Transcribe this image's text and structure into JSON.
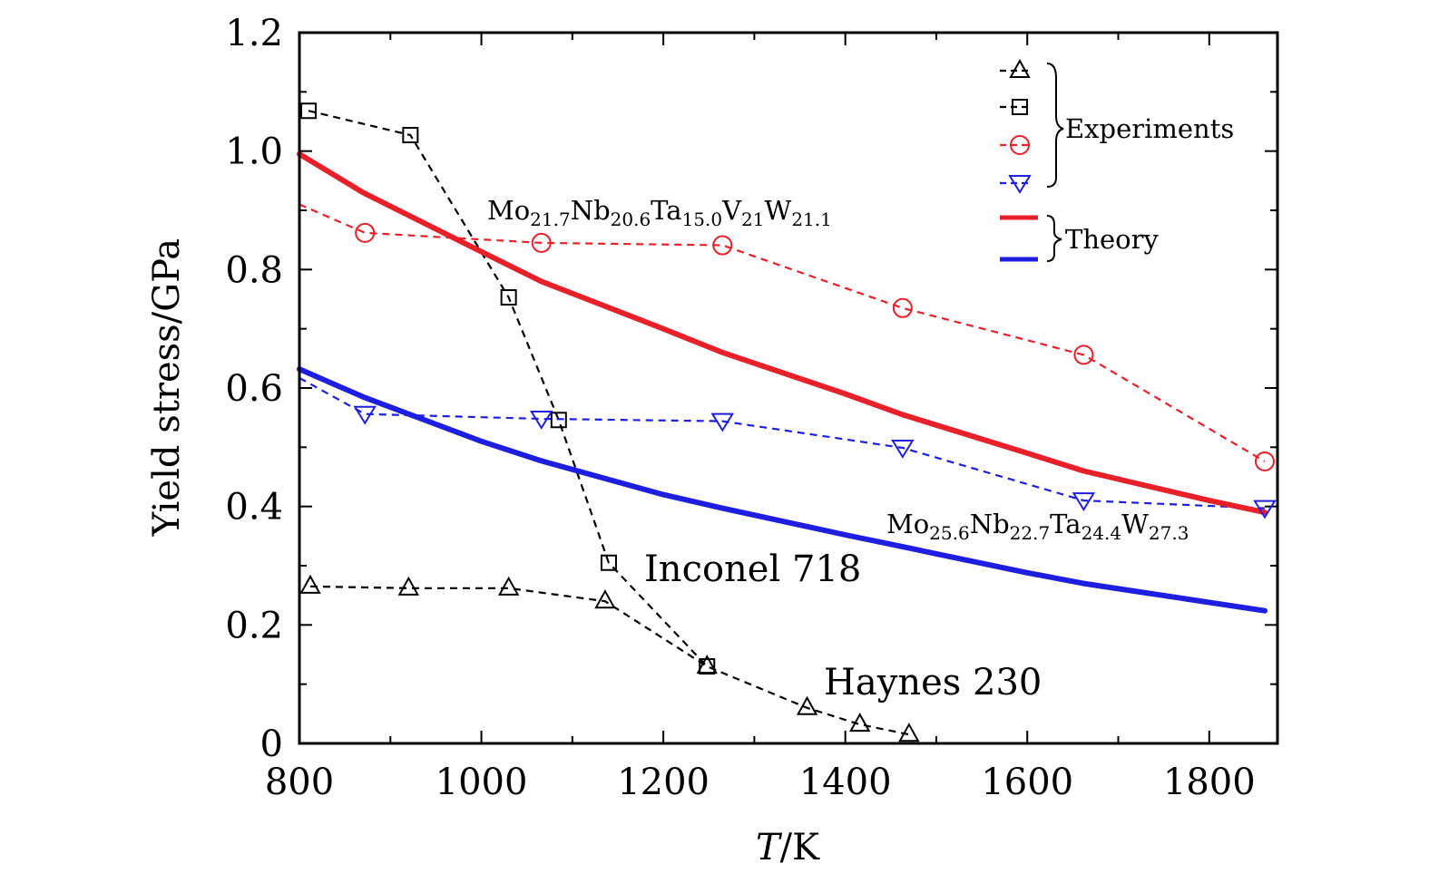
{
  "chart_data": {
    "type": "line",
    "xlabel": "T/K",
    "ylabel": "Yield stress/GPa",
    "xlim": [
      800,
      1875
    ],
    "ylim": [
      0,
      1.2
    ],
    "xticks": [
      800,
      1000,
      1200,
      1400,
      1600,
      1800
    ],
    "yticks": [
      0,
      0.2,
      0.4,
      0.6,
      0.8,
      1.0,
      1.2
    ],
    "ytick_labels": [
      "0",
      "0.2",
      "0.4",
      "0.6",
      "0.8",
      "1.0",
      "1.2"
    ],
    "colors": {
      "black": "#000000",
      "red": "#e8202a",
      "blue": "#1e1ee0"
    },
    "series": [
      {
        "name": "Haynes 230",
        "kind": "experiment",
        "marker": "triangle-up",
        "color": "#000000",
        "x": [
          812,
          920,
          1030,
          1136,
          1248,
          1358,
          1416,
          1470
        ],
        "y": [
          0.265,
          0.262,
          0.262,
          0.24,
          0.13,
          0.06,
          0.032,
          0.015
        ]
      },
      {
        "name": "Inconel 718",
        "kind": "experiment",
        "marker": "square",
        "color": "#000000",
        "x": [
          810,
          922,
          1030,
          1085,
          1140,
          1248
        ],
        "y": [
          1.068,
          1.027,
          0.753,
          0.546,
          0.305,
          0.13
        ]
      },
      {
        "name": "Mo21.7Nb20.6Ta15.0V21W21.1",
        "kind": "experiment",
        "marker": "circle",
        "color": "#e8202a",
        "x": [
          800,
          872,
          1066,
          1265,
          1463,
          1662,
          1861
        ],
        "y": [
          0.91,
          0.862,
          0.845,
          0.841,
          0.735,
          0.656,
          0.476
        ]
      },
      {
        "name": "Mo25.6Nb22.7Ta24.4W27.3",
        "kind": "experiment",
        "marker": "triangle-down",
        "color": "#1e1ee0",
        "x": [
          800,
          872,
          1066,
          1265,
          1463,
          1662,
          1861
        ],
        "y": [
          0.617,
          0.556,
          0.548,
          0.544,
          0.499,
          0.41,
          0.397
        ]
      },
      {
        "name": "Mo21.7Nb20.6Ta15.0V21W21.1",
        "kind": "theory",
        "color": "#e8202a",
        "x": [
          800,
          870,
          1000,
          1066,
          1200,
          1265,
          1400,
          1463,
          1600,
          1662,
          1800,
          1861
        ],
        "y": [
          0.995,
          0.93,
          0.83,
          0.78,
          0.7,
          0.66,
          0.59,
          0.555,
          0.49,
          0.46,
          0.41,
          0.39
        ]
      },
      {
        "name": "Mo25.6Nb22.7Ta24.4W27.3",
        "kind": "theory",
        "color": "#1e1ee0",
        "x": [
          800,
          870,
          1000,
          1066,
          1200,
          1265,
          1400,
          1463,
          1600,
          1662,
          1800,
          1861
        ],
        "y": [
          0.632,
          0.585,
          0.51,
          0.477,
          0.42,
          0.397,
          0.352,
          0.332,
          0.288,
          0.27,
          0.238,
          0.224
        ]
      }
    ],
    "annotations": {
      "inconel": "Inconel 718",
      "haynes": "Haynes 230",
      "red_alloy": {
        "parts": [
          "Mo",
          "21.7",
          "Nb",
          "20.6",
          "Ta",
          "15.0",
          "V",
          "21",
          "W",
          "21.1"
        ]
      },
      "blue_alloy": {
        "parts": [
          "Mo",
          "25.6",
          "Nb",
          "22.7",
          "Ta",
          "24.4",
          "W",
          "27.3"
        ]
      }
    },
    "legend": {
      "position": "top-right",
      "experiments_label": "Experiments",
      "theory_label": "Theory"
    }
  }
}
